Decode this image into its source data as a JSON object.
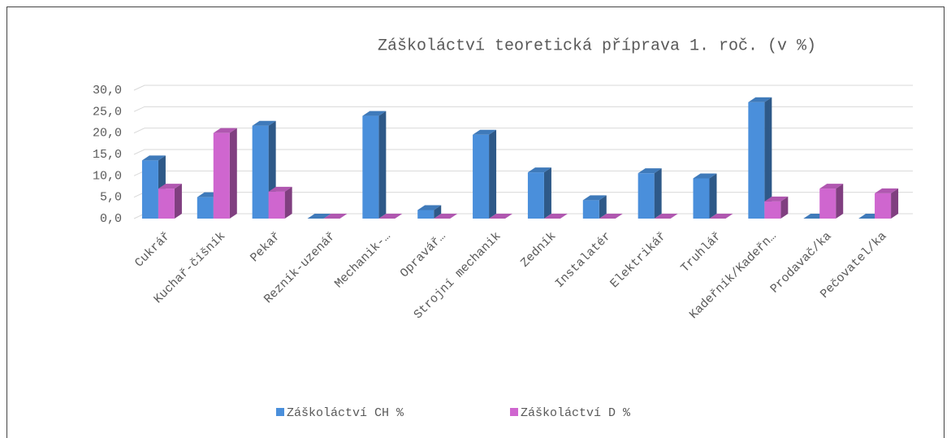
{
  "chart_data": {
    "type": "bar3d",
    "title": "Záškoláctví teoretická příprava 1. roč. (v %)",
    "categories": [
      "Cukrář",
      "Kuchař-číšník",
      "Pekař",
      "Rezník-uzenář",
      "Mechanik-…",
      "Opravář…",
      "Strojní mechanik",
      "Zedník",
      "Instalatér",
      "Elektrikář",
      "Truhlář",
      "Kadeřník/Kadeřn…",
      "Prodavač/ka",
      "Pečovatel/ka"
    ],
    "series": [
      {
        "name": "Záškoláctví CH %",
        "color": "#4a8fdb",
        "values": [
          13.6,
          5.0,
          21.7,
          0,
          24.0,
          2.0,
          19.6,
          10.8,
          4.3,
          10.6,
          9.4,
          27.2,
          0,
          0
        ]
      },
      {
        "name": "Záškoláctví D %",
        "color": "#cf66cf",
        "values": [
          7.0,
          20.0,
          6.3,
          0,
          0,
          0,
          0,
          0,
          0,
          0,
          0,
          4.0,
          7.0,
          5.9
        ]
      }
    ],
    "ylim": [
      0,
      30
    ],
    "yticks": [
      {
        "value": 0,
        "label": "0,0"
      },
      {
        "value": 5,
        "label": "5,0"
      },
      {
        "value": 10,
        "label": "10,0"
      },
      {
        "value": 15,
        "label": "15,0"
      },
      {
        "value": 20,
        "label": "20,0"
      },
      {
        "value": 25,
        "label": "25,0"
      },
      {
        "value": 30,
        "label": "30,0"
      }
    ],
    "grid": true,
    "legend": "bottom"
  }
}
